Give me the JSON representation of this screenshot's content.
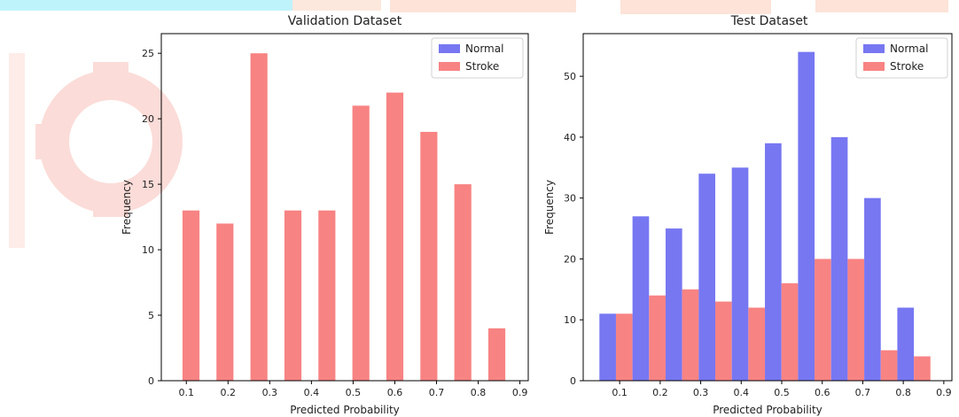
{
  "watermark_colors": {
    "peach": "#fde3d8",
    "cyan": "#bff3fb",
    "gear": "#fbd9d4"
  },
  "chart_data": [
    {
      "type": "bar",
      "title": "Validation Dataset",
      "xlabel": "Predicted Probability",
      "ylabel": "Frequency",
      "xlim": [
        0.04,
        0.92
      ],
      "ylim": [
        0,
        26.5
      ],
      "xticks": [
        0.1,
        0.2,
        0.3,
        0.4,
        0.5,
        0.6,
        0.7,
        0.8,
        0.9
      ],
      "xtick_labels": [
        "0.1",
        "0.2",
        "0.3",
        "0.4",
        "0.5",
        "0.6",
        "0.7",
        "0.8",
        "0.9"
      ],
      "yticks": [
        0,
        5,
        10,
        15,
        20,
        25
      ],
      "ytick_labels": [
        "0",
        "5",
        "10",
        "15",
        "20",
        "25"
      ],
      "legend_position": "top-right",
      "grid": false,
      "bin_width": 0.0815,
      "bin_starts": [
        0.05,
        0.1315,
        0.213,
        0.2945,
        0.376,
        0.4575,
        0.539,
        0.6205,
        0.702,
        0.7835
      ],
      "series": [
        {
          "name": "Normal",
          "color": "#7777f2",
          "values": [
            0,
            0,
            0,
            0,
            0,
            0,
            0,
            0,
            0,
            0
          ]
        },
        {
          "name": "Stroke",
          "color": "#f88383",
          "values": [
            13,
            12,
            25,
            13,
            13,
            21,
            22,
            19,
            15,
            4
          ]
        }
      ]
    },
    {
      "type": "bar",
      "title": "Test Dataset",
      "xlabel": "Predicted Probability",
      "ylabel": "Frequency",
      "xlim": [
        0.01,
        0.92
      ],
      "ylim": [
        0,
        57
      ],
      "xticks": [
        0.1,
        0.2,
        0.3,
        0.4,
        0.5,
        0.6,
        0.7,
        0.8,
        0.9
      ],
      "xtick_labels": [
        "0.1",
        "0.2",
        "0.3",
        "0.4",
        "0.5",
        "0.6",
        "0.7",
        "0.8",
        "0.9"
      ],
      "yticks": [
        0,
        10,
        20,
        30,
        40,
        50
      ],
      "ytick_labels": [
        "0",
        "10",
        "20",
        "30",
        "40",
        "50"
      ],
      "legend_position": "top-right",
      "grid": false,
      "bin_width": 0.0817,
      "bin_starts": [
        0.05,
        0.1317,
        0.2134,
        0.2951,
        0.3768,
        0.4585,
        0.5402,
        0.6219,
        0.7036,
        0.7853
      ],
      "series": [
        {
          "name": "Normal",
          "color": "#7777f2",
          "values": [
            11,
            27,
            25,
            34,
            35,
            39,
            54,
            40,
            30,
            12
          ]
        },
        {
          "name": "Stroke",
          "color": "#f88383",
          "values": [
            11,
            14,
            15,
            13,
            12,
            16,
            20,
            20,
            5,
            4
          ]
        }
      ]
    }
  ]
}
